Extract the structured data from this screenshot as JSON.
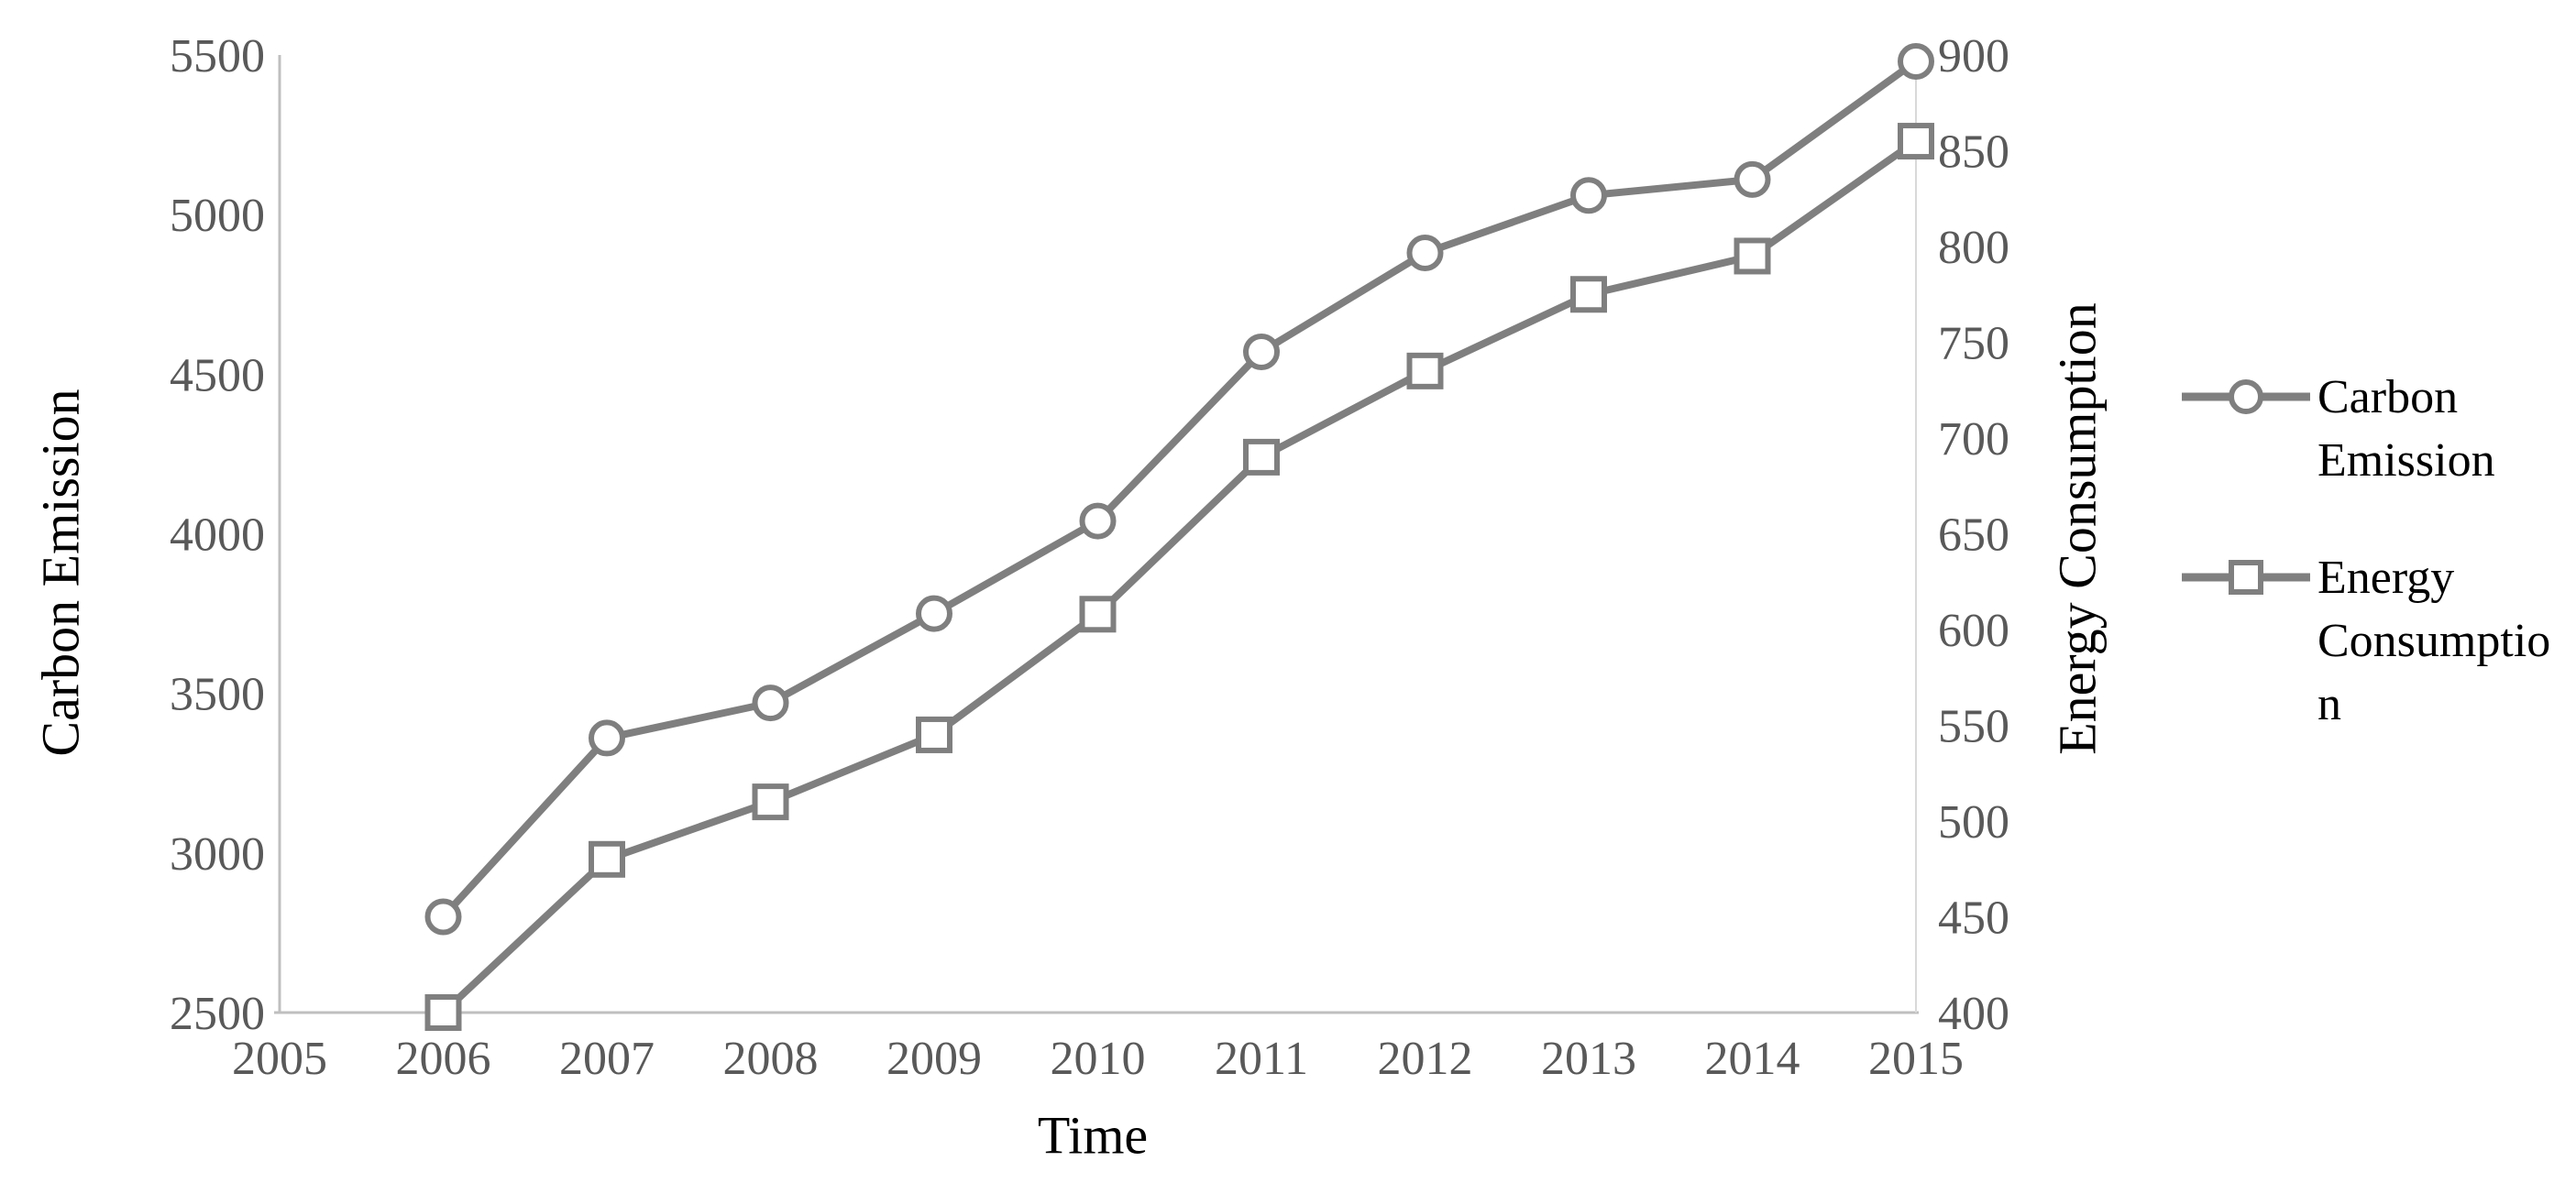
{
  "chart_data": {
    "type": "line",
    "title": "",
    "x_axis": {
      "title": "Time",
      "ticks": [
        2005,
        2006,
        2007,
        2008,
        2009,
        2010,
        2011,
        2012,
        2013,
        2014,
        2015
      ],
      "range": [
        2005,
        2015
      ]
    },
    "left_axis": {
      "title": "Carbon Emission",
      "ticks": [
        2500,
        3000,
        3500,
        4000,
        4500,
        5000,
        5500
      ],
      "range": [
        2500,
        5500
      ]
    },
    "right_axis": {
      "title": "Energy Consumption",
      "ticks": [
        400,
        450,
        500,
        550,
        600,
        650,
        700,
        750,
        800,
        850,
        900
      ],
      "range": [
        400,
        900
      ]
    },
    "x": [
      2006,
      2007,
      2008,
      2009,
      2010,
      2011,
      2012,
      2013,
      2014,
      2015
    ],
    "series": [
      {
        "name": "Carbon Emission",
        "axis": "left",
        "marker": "circle",
        "values": [
          2800,
          3360,
          3470,
          3750,
          4040,
          4570,
          4880,
          5060,
          5110,
          5480
        ]
      },
      {
        "name": "Energy Consumption",
        "axis": "right",
        "marker": "square",
        "values": [
          400,
          480,
          510,
          545,
          608,
          690,
          735,
          775,
          795,
          855
        ]
      }
    ],
    "legend": {
      "position": "right",
      "entries": [
        {
          "label": "Carbon Emission",
          "display_lines": [
            "Carbon",
            "Emission"
          ]
        },
        {
          "label": "Energy Consumption",
          "display_lines": [
            "Energy",
            "Consumptio",
            "n"
          ]
        }
      ]
    },
    "grid": false,
    "styles": {
      "series_line_color": "#7f7f7f",
      "marker_fill": "#ffffff",
      "marker_stroke": "#7f7f7f",
      "tick_label_color": "#595959",
      "axis_title_color": "#000000",
      "spine_color": "#bfbfbf",
      "right_spine_color": "#d9d9d9"
    }
  }
}
